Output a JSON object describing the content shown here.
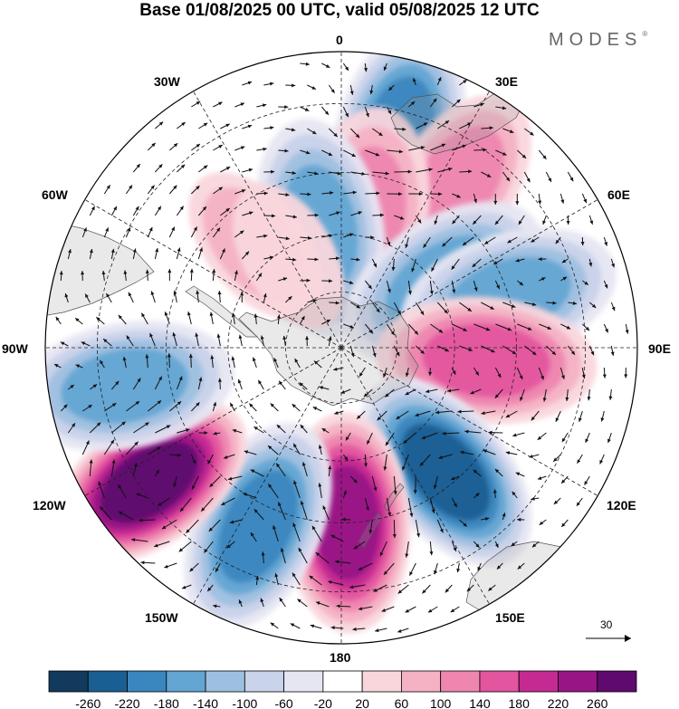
{
  "title": "Base 01/08/2025 00 UTC, valid 05/08/2025 12 UTC",
  "brand": "MODES",
  "brand_mark": "®",
  "map": {
    "projection": "south-polar-stereographic",
    "longitude_labels": {
      "lon_0": "0",
      "lon_30e": "30E",
      "lon_60e": "60E",
      "lon_90e": "90E",
      "lon_120e": "120E",
      "lon_150e": "150E",
      "lon_180": "180",
      "lon_150w": "150W",
      "lon_120w": "120W",
      "lon_90w": "90W",
      "lon_60w": "60W",
      "lon_30w": "30W"
    },
    "anomaly_centers": [
      {
        "lon": 15,
        "lat": -35,
        "value": -200
      },
      {
        "lon": 35,
        "lat": -40,
        "value": 110
      },
      {
        "lon": 10,
        "lat": -55,
        "value": 130
      },
      {
        "lon": -10,
        "lat": -58,
        "value": -140
      },
      {
        "lon": 57,
        "lat": -58,
        "value": -140
      },
      {
        "lon": 73,
        "lat": -45,
        "value": -160
      },
      {
        "lon": 95,
        "lat": -52,
        "value": 150
      },
      {
        "lon": 140,
        "lat": -48,
        "value": -220
      },
      {
        "lon": 178,
        "lat": -45,
        "value": 240
      },
      {
        "lon": -155,
        "lat": -40,
        "value": -200
      },
      {
        "lon": -125,
        "lat": -32,
        "value": 270
      },
      {
        "lon": -100,
        "lat": -35,
        "value": -150
      },
      {
        "lon": -40,
        "lat": -55,
        "value": 60
      },
      {
        "lon": -30,
        "lat": -62,
        "value": 40
      }
    ]
  },
  "wind_scale": {
    "label": "30",
    "units_arrow": "reference-arrow"
  },
  "colorbar": {
    "ticks": [
      "-260",
      "-220",
      "-180",
      "-140",
      "-100",
      "-60",
      "-20",
      "20",
      "60",
      "100",
      "140",
      "180",
      "220",
      "260"
    ],
    "colors": [
      "#123a5c",
      "#1a5f93",
      "#3a86bf",
      "#63a5d3",
      "#9ec0e0",
      "#c9d3ea",
      "#e6e6f2",
      "#ffffff",
      "#f9d6dc",
      "#f5b2c5",
      "#ee86b0",
      "#e3559f",
      "#c52a92",
      "#981585",
      "#5e0a6e"
    ]
  }
}
